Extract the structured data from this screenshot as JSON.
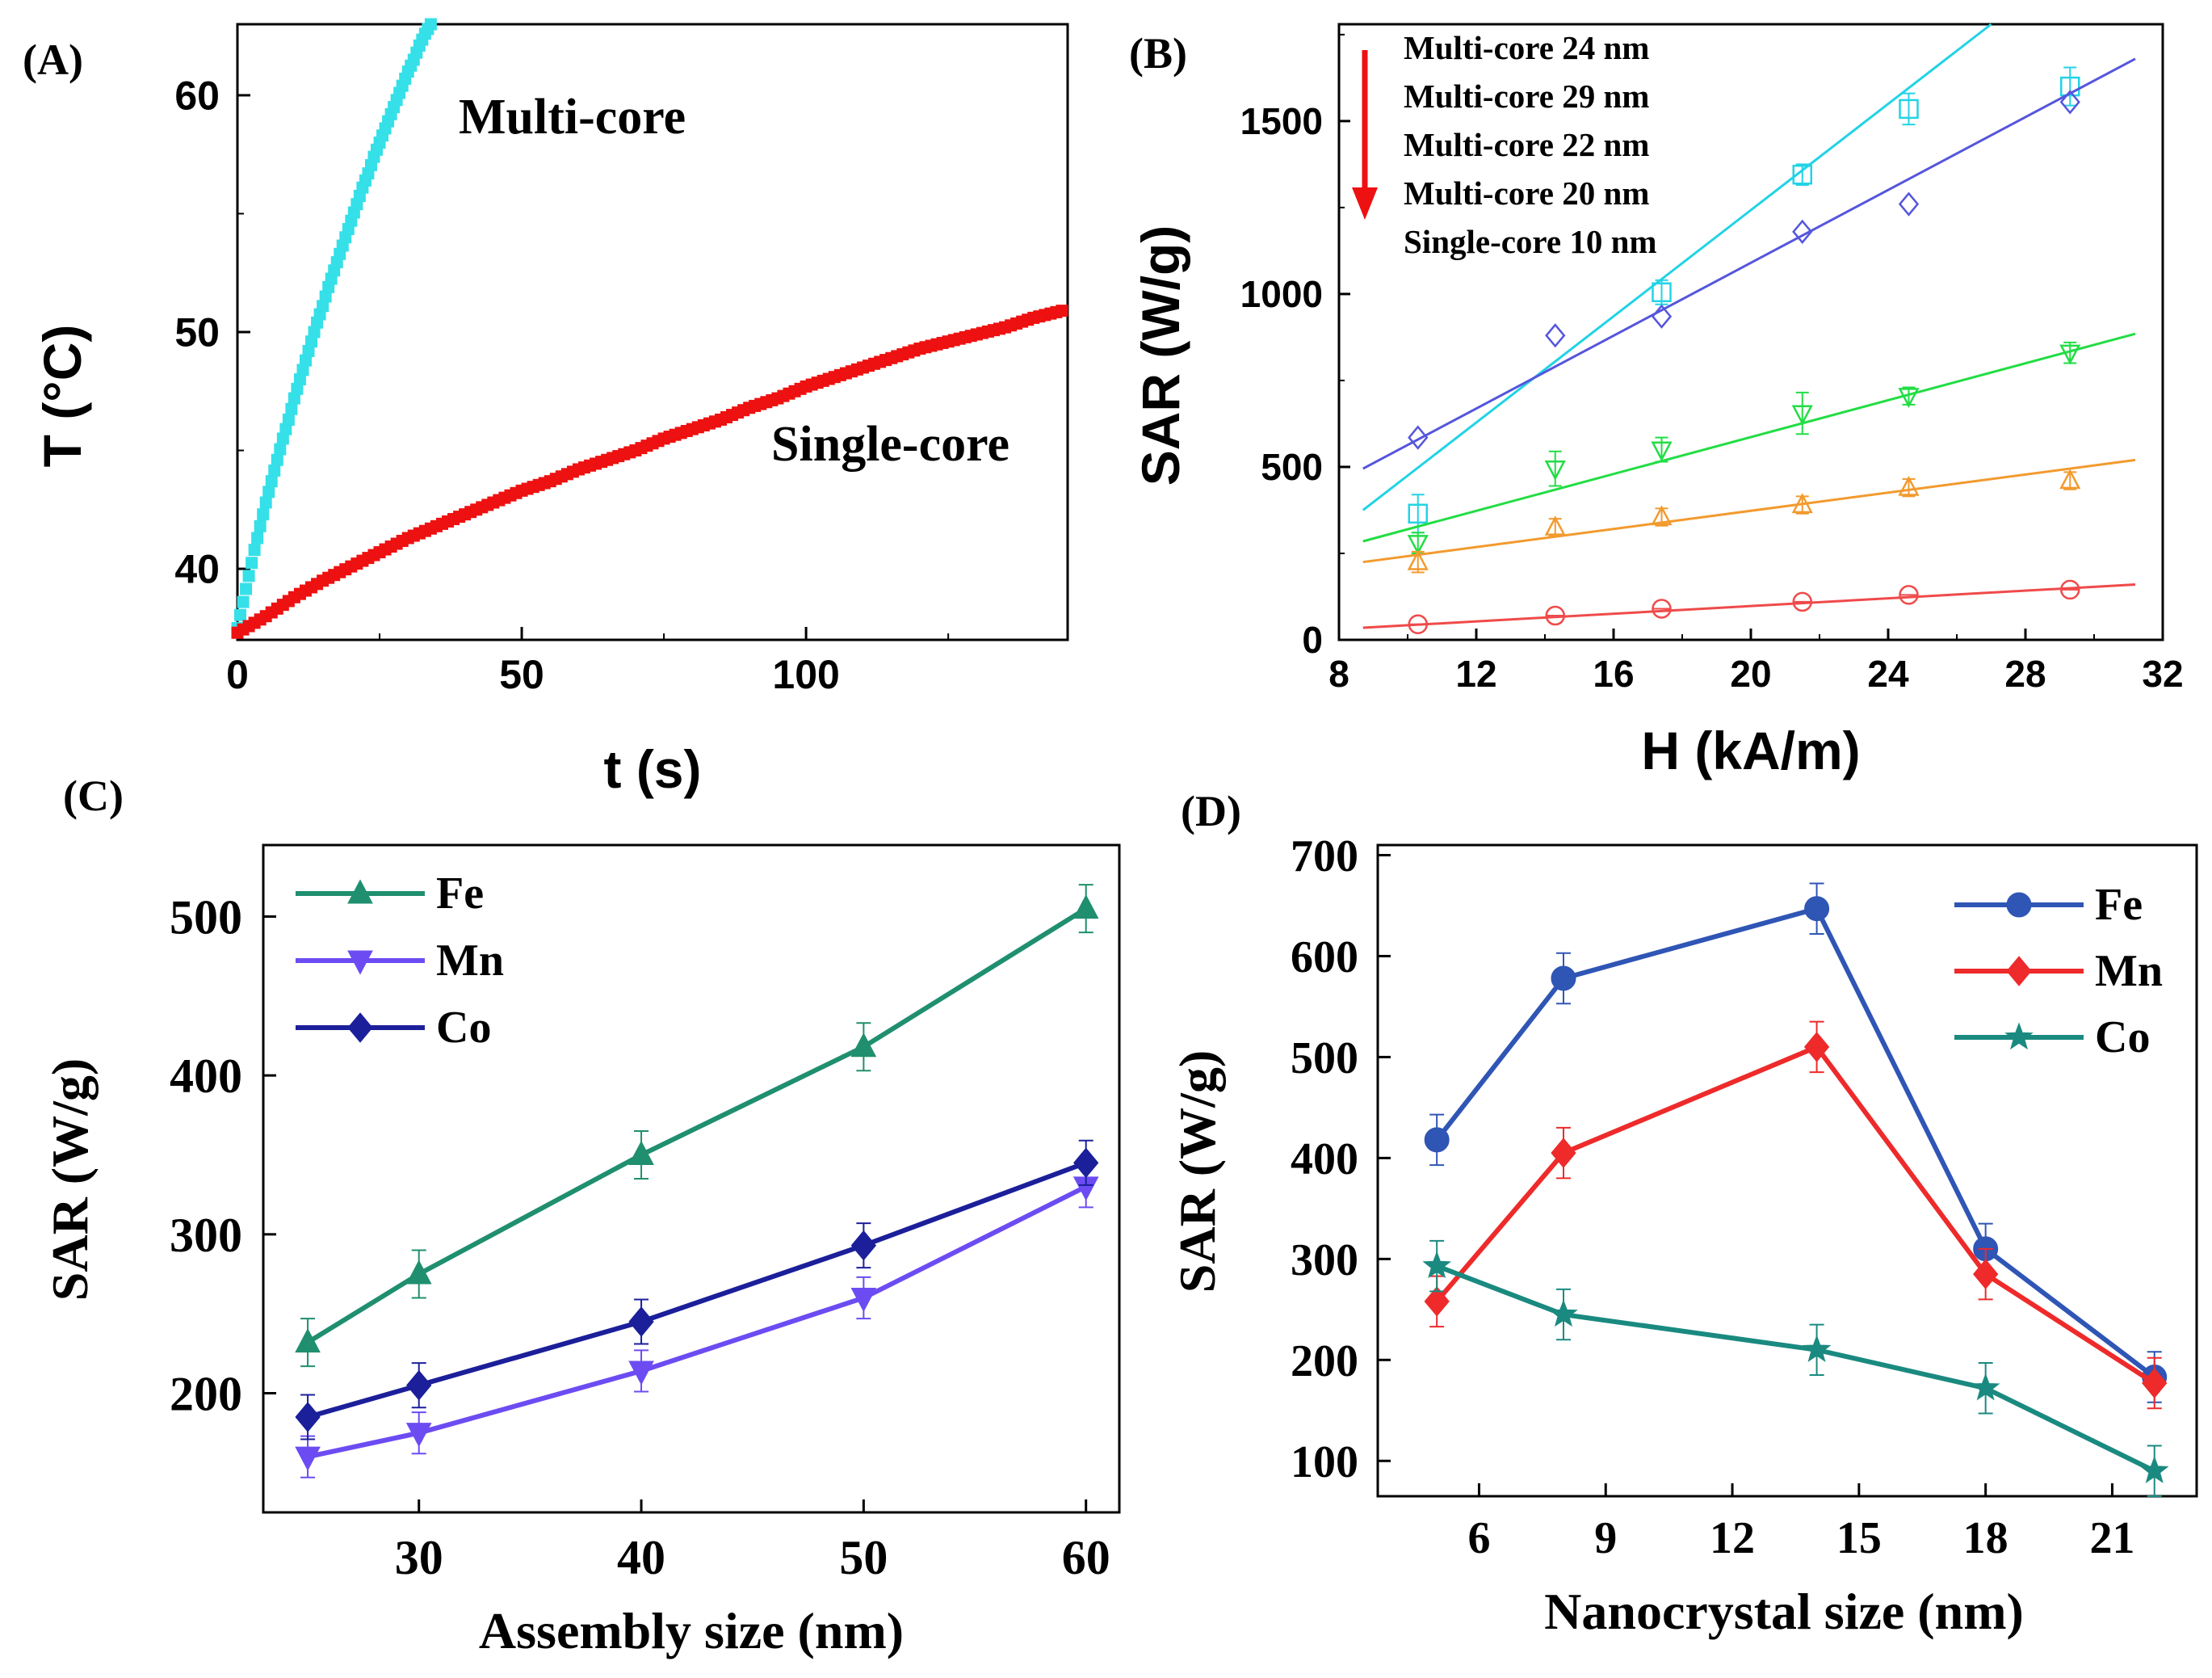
{
  "chart_data": [
    {
      "id": "A",
      "panel_label": "(A)",
      "type": "scatter",
      "title": "",
      "xlabel": "t (s)",
      "ylabel": "T (°C)",
      "xlim": [
        0,
        146
      ],
      "ylim": [
        37,
        63
      ],
      "xticks": [
        0,
        50,
        100
      ],
      "yticks": [
        40,
        50,
        60
      ],
      "annotations": [
        "Multi-core",
        "Single-core"
      ],
      "series": [
        {
          "name": "Multi-core",
          "color": "#35e0e8",
          "marker": "square",
          "x": [
            0,
            1,
            2,
            3,
            4,
            5,
            6,
            7,
            8,
            9,
            10,
            11,
            12,
            13,
            14,
            15,
            16,
            17,
            18,
            19,
            20,
            21,
            22,
            23,
            24,
            25,
            26,
            27,
            28,
            29,
            30,
            31,
            32,
            33,
            34
          ],
          "y": [
            37.5,
            38.6,
            39.7,
            40.8,
            41.8,
            42.8,
            43.7,
            44.6,
            45.5,
            46.3,
            47.2,
            48.0,
            48.8,
            49.6,
            50.4,
            51.1,
            51.9,
            52.6,
            53.3,
            54.0,
            54.7,
            55.4,
            56.1,
            56.7,
            57.4,
            58.0,
            58.6,
            59.2,
            59.8,
            60.4,
            61.0,
            61.5,
            62.1,
            62.6,
            63.0
          ]
        },
        {
          "name": "Single-core",
          "color": "#ee1111",
          "marker": "square",
          "x": [
            0,
            5,
            10,
            15,
            20,
            25,
            30,
            35,
            40,
            45,
            50,
            55,
            60,
            65,
            70,
            75,
            80,
            85,
            90,
            95,
            100,
            105,
            110,
            115,
            120,
            125,
            130,
            135,
            140,
            145
          ],
          "y": [
            37.3,
            38.0,
            38.8,
            39.5,
            40.1,
            40.7,
            41.3,
            41.8,
            42.3,
            42.8,
            43.3,
            43.7,
            44.2,
            44.6,
            45.0,
            45.5,
            45.9,
            46.3,
            46.8,
            47.2,
            47.7,
            48.1,
            48.5,
            48.9,
            49.3,
            49.6,
            49.9,
            50.2,
            50.6,
            50.9
          ]
        }
      ]
    },
    {
      "id": "B",
      "panel_label": "(B)",
      "type": "scatter",
      "title": "",
      "xlabel": "H (kA/m)",
      "ylabel": "SAR (W/g)",
      "xlim": [
        8,
        32
      ],
      "ylim": [
        0,
        1780
      ],
      "xticks": [
        8,
        12,
        16,
        20,
        24,
        28,
        32
      ],
      "yticks": [
        0,
        500,
        1000,
        1500
      ],
      "legend_order_note": "arrow",
      "legend": [
        "Multi-core  24 nm",
        "Multi-core  29 nm",
        "Multi-core  22 nm",
        "Multi-core  20 nm",
        "Single-core 10 nm"
      ],
      "series": [
        {
          "name": "Multi-core  24 nm",
          "color": "#22d3e6",
          "marker": "square",
          "x": [
            10.3,
            17.4,
            21.5,
            24.6,
            29.3
          ],
          "y": [
            365,
            1005,
            1345,
            1535,
            1600
          ],
          "err": [
            55,
            35,
            30,
            45,
            55
          ],
          "fit": [
            [
              8.7,
              375
            ],
            [
              27.0,
              1780
            ]
          ]
        },
        {
          "name": "Multi-core  29 nm",
          "color": "#5555dd",
          "marker": "diamond",
          "x": [
            10.3,
            14.3,
            17.4,
            21.5,
            24.6,
            29.3
          ],
          "y": [
            585,
            880,
            935,
            1180,
            1260,
            1555
          ],
          "err": [
            0,
            0,
            0,
            0,
            0,
            0
          ],
          "fit": [
            [
              8.7,
              495
            ],
            [
              31.2,
              1680
            ]
          ]
        },
        {
          "name": "Multi-core  22 nm",
          "color": "#22dd44",
          "marker": "triangle-down",
          "x": [
            10.3,
            14.3,
            17.4,
            21.5,
            24.6,
            29.3
          ],
          "y": [
            280,
            495,
            550,
            655,
            705,
            830
          ],
          "err": [
            30,
            50,
            35,
            60,
            25,
            30
          ],
          "fit": [
            [
              8.7,
              285
            ],
            [
              31.2,
              885
            ]
          ]
        },
        {
          "name": "Multi-core  20 nm",
          "color": "#f29a2e",
          "marker": "triangle-up",
          "x": [
            10.3,
            14.3,
            17.4,
            21.5,
            24.6,
            29.3
          ],
          "y": [
            225,
            325,
            355,
            390,
            440,
            460
          ],
          "err": [
            30,
            25,
            25,
            25,
            25,
            25
          ],
          "fit": [
            [
              8.7,
              225
            ],
            [
              31.2,
              520
            ]
          ]
        },
        {
          "name": "Single-core 10 nm",
          "color": "#f04a4a",
          "marker": "circle",
          "x": [
            10.3,
            14.3,
            17.4,
            21.5,
            24.6,
            29.3
          ],
          "y": [
            45,
            70,
            90,
            110,
            130,
            145
          ],
          "err": [
            0,
            0,
            0,
            0,
            0,
            0
          ],
          "fit": [
            [
              8.7,
              35
            ],
            [
              31.2,
              160
            ]
          ]
        }
      ]
    },
    {
      "id": "C",
      "panel_label": "(C)",
      "type": "line",
      "title": "",
      "xlabel": "Assembly size (nm)",
      "ylabel": "SAR (W/g)",
      "xlim": [
        23,
        61.5
      ],
      "ylim": [
        125,
        545
      ],
      "xticks": [
        30,
        40,
        50,
        60
      ],
      "yticks": [
        200,
        300,
        400,
        500
      ],
      "x": [
        25,
        30,
        40,
        50,
        60
      ],
      "legend": [
        "Fe",
        "Mn",
        "Co"
      ],
      "series": [
        {
          "name": "Fe",
          "color": "#1f8f6f",
          "marker": "triangle-up",
          "values": [
            232,
            275,
            350,
            418,
            505
          ],
          "err": [
            15,
            15,
            15,
            15,
            15
          ]
        },
        {
          "name": "Mn",
          "color": "#6c4cf2",
          "marker": "triangle-down",
          "values": [
            160,
            175,
            214,
            260,
            330
          ],
          "err": [
            13,
            13,
            13,
            13,
            13
          ]
        },
        {
          "name": "Co",
          "color": "#1b1f9a",
          "marker": "diamond",
          "values": [
            185,
            205,
            245,
            293,
            345
          ],
          "err": [
            14,
            14,
            14,
            14,
            14
          ]
        }
      ]
    },
    {
      "id": "D",
      "panel_label": "(D)",
      "type": "line",
      "title": "",
      "xlabel": "Nanocrystal size (nm)",
      "ylabel": "SAR (W/g)",
      "xlim": [
        3.6,
        23.0
      ],
      "ylim": [
        65,
        710
      ],
      "xticks": [
        6,
        9,
        12,
        15,
        18,
        21
      ],
      "yticks": [
        100,
        200,
        300,
        400,
        500,
        600,
        700
      ],
      "x": [
        5,
        8,
        14,
        18,
        22
      ],
      "legend": [
        "Fe",
        "Mn",
        "Co"
      ],
      "series": [
        {
          "name": "Fe",
          "color": "#2f55b5",
          "marker": "circle",
          "values": [
            418,
            578,
            647,
            310,
            183
          ],
          "err": [
            25,
            25,
            25,
            25,
            25
          ]
        },
        {
          "name": "Mn",
          "color": "#ee2a2a",
          "marker": "diamond",
          "values": [
            258,
            405,
            510,
            285,
            177
          ],
          "err": [
            25,
            25,
            25,
            25,
            25
          ]
        },
        {
          "name": "Co",
          "color": "#1a8a80",
          "marker": "star",
          "values": [
            293,
            245,
            210,
            172,
            90
          ],
          "err": [
            25,
            25,
            25,
            25,
            25
          ]
        }
      ]
    }
  ]
}
